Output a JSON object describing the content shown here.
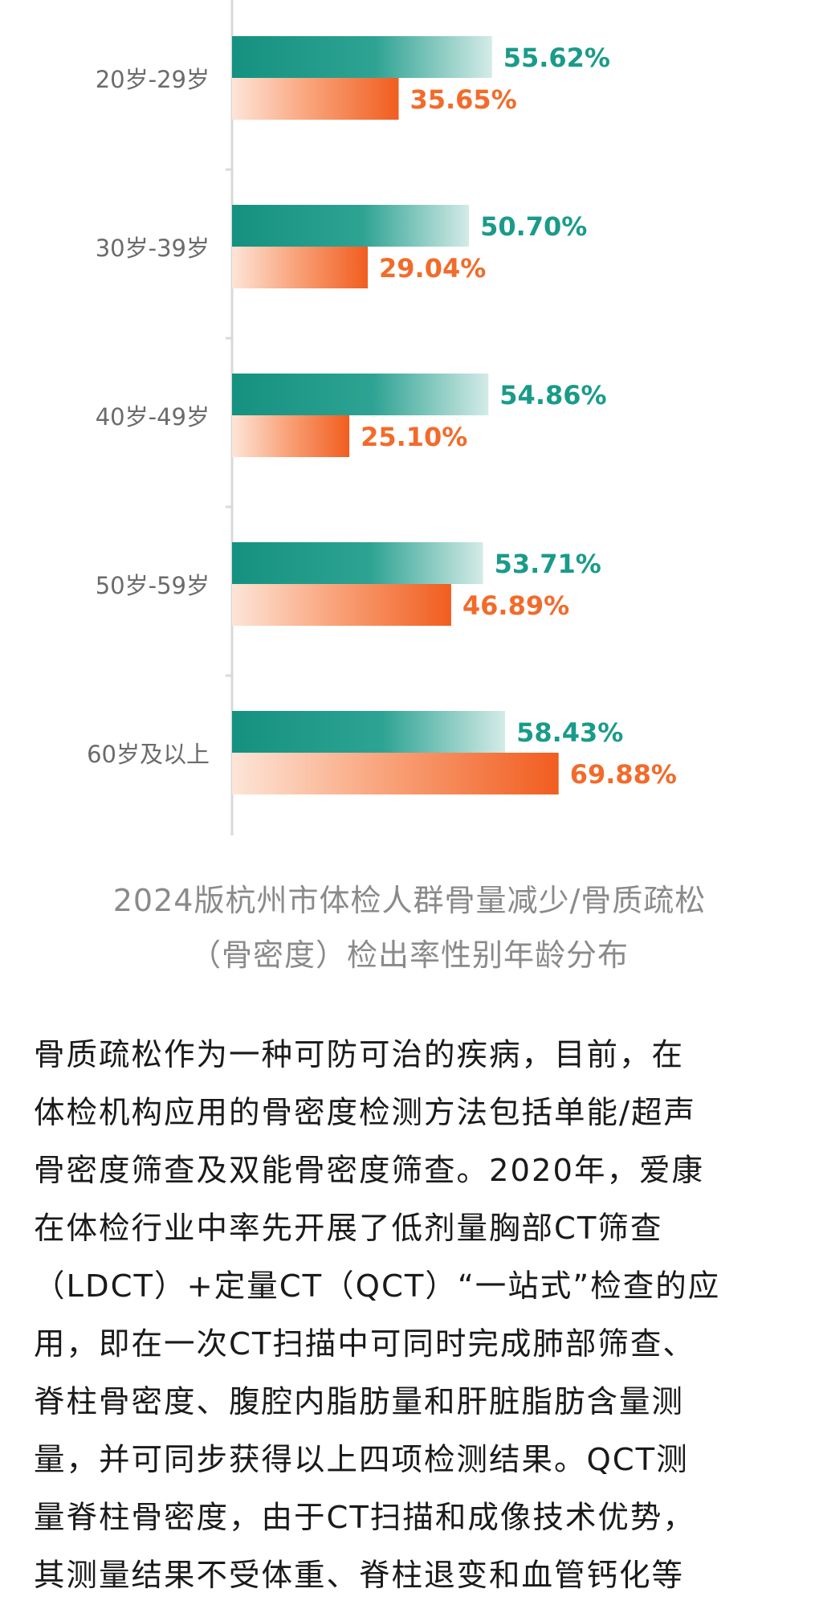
{
  "chart_data": {
    "type": "bar",
    "orientation": "horizontal",
    "categories": [
      "20岁-29岁",
      "30岁-39岁",
      "40岁-49岁",
      "50岁-59岁",
      "60岁及以上"
    ],
    "series": [
      {
        "values": [
          55.62,
          50.7,
          54.86,
          53.71,
          58.43
        ],
        "color": "#1a9b8a"
      },
      {
        "values": [
          35.65,
          29.04,
          25.1,
          46.89,
          69.88
        ],
        "color": "#f26b2a"
      }
    ],
    "data_labels": [
      [
        "55.62%",
        "50.70%",
        "54.86%",
        "53.71%",
        "58.43%"
      ],
      [
        "35.65%",
        "29.04%",
        "25.10%",
        "46.89%",
        "69.88%"
      ]
    ],
    "xlim": [
      0,
      100
    ],
    "grid": false,
    "legend": "none"
  },
  "caption": {
    "line1": "2024版杭州市体检人群骨量减少/骨质疏松",
    "line2": "（骨密度）检出率性别年龄分布"
  },
  "article": {
    "lines": [
      "骨质疏松作为一种可防可治的疾病，目前，在",
      "体检机构应用的骨密度检测方法包括单能/超声",
      "骨密度筛查及双能骨密度筛查。2020年，爱康",
      "在体检行业中率先开展了低剂量胸部CT筛查",
      "（LDCT）+定量CT（QCT）“一站式”检查的应",
      "用，即在一次CT扫描中可同时完成肺部筛查、",
      "脊柱骨密度、腹腔内脂肪量和肝脏脂肪含量测",
      "量，并可同步获得以上四项检测结果。QCT测",
      "量脊柱骨密度，由于CT扫描和成像技术优势，",
      "其测量结果不受体重、脊柱退变和血管钙化等"
    ]
  }
}
